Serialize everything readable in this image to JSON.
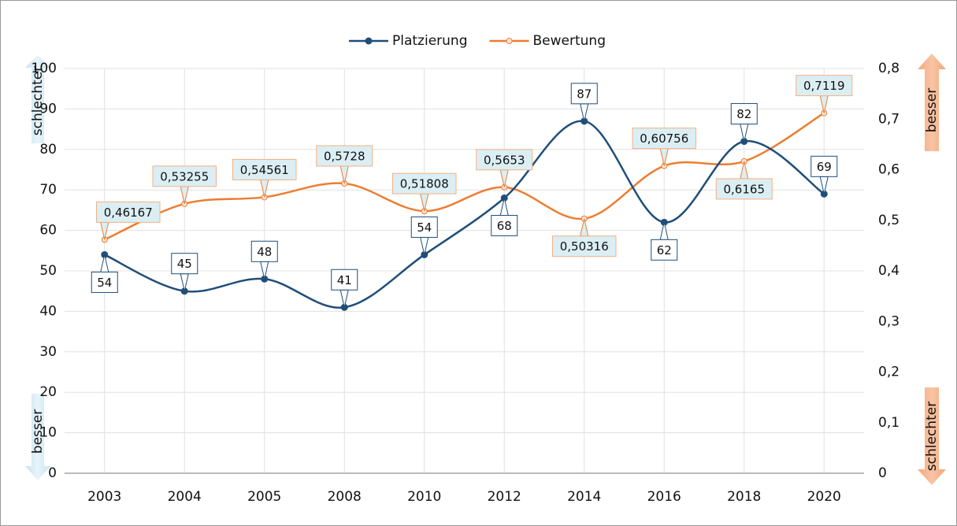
{
  "chart_data": {
    "type": "line",
    "categories": [
      "2003",
      "2004",
      "2005",
      "2008",
      "2010",
      "2012",
      "2014",
      "2016",
      "2018",
      "2020"
    ],
    "series": [
      {
        "name": "Platzierung",
        "color": "#1f4e79",
        "values": [
          54,
          45,
          48,
          41,
          54,
          68,
          87,
          62,
          82,
          69
        ]
      },
      {
        "name": "Bewertung",
        "color": "#ed7d31",
        "axis": "y2",
        "values": [
          0.46167,
          0.53255,
          0.54561,
          0.5728,
          0.51808,
          0.5653,
          0.50316,
          0.60756,
          0.6165,
          0.7119
        ],
        "value_labels": [
          "0,46167",
          "0,53255",
          "0,54561",
          "0,5728",
          "0,51808",
          "0,5653",
          "0,50316",
          "0,60756",
          "0,6165",
          "0,7119"
        ]
      }
    ],
    "ylim": [
      0,
      100
    ],
    "yticks": [
      0,
      10,
      20,
      30,
      40,
      50,
      60,
      70,
      80,
      90,
      100
    ],
    "y2lim": [
      0,
      0.8
    ],
    "y2ticks": [
      0,
      {
        "value": 0.1,
        "label": "0,1"
      },
      {
        "value": 0.2,
        "label": "0,2"
      },
      {
        "value": 0.3,
        "label": "0,3"
      },
      {
        "value": 0.4,
        "label": "0,4"
      },
      {
        "value": 0.5,
        "label": "0,5"
      },
      {
        "value": 0.6,
        "label": "0,6"
      },
      {
        "value": 0.7,
        "label": "0,7"
      },
      {
        "value": 0.8,
        "label": "0,8"
      }
    ],
    "grid": true,
    "legend": "top",
    "annotations": [
      "schlechter",
      "besser",
      "besser",
      "schlechter"
    ]
  }
}
